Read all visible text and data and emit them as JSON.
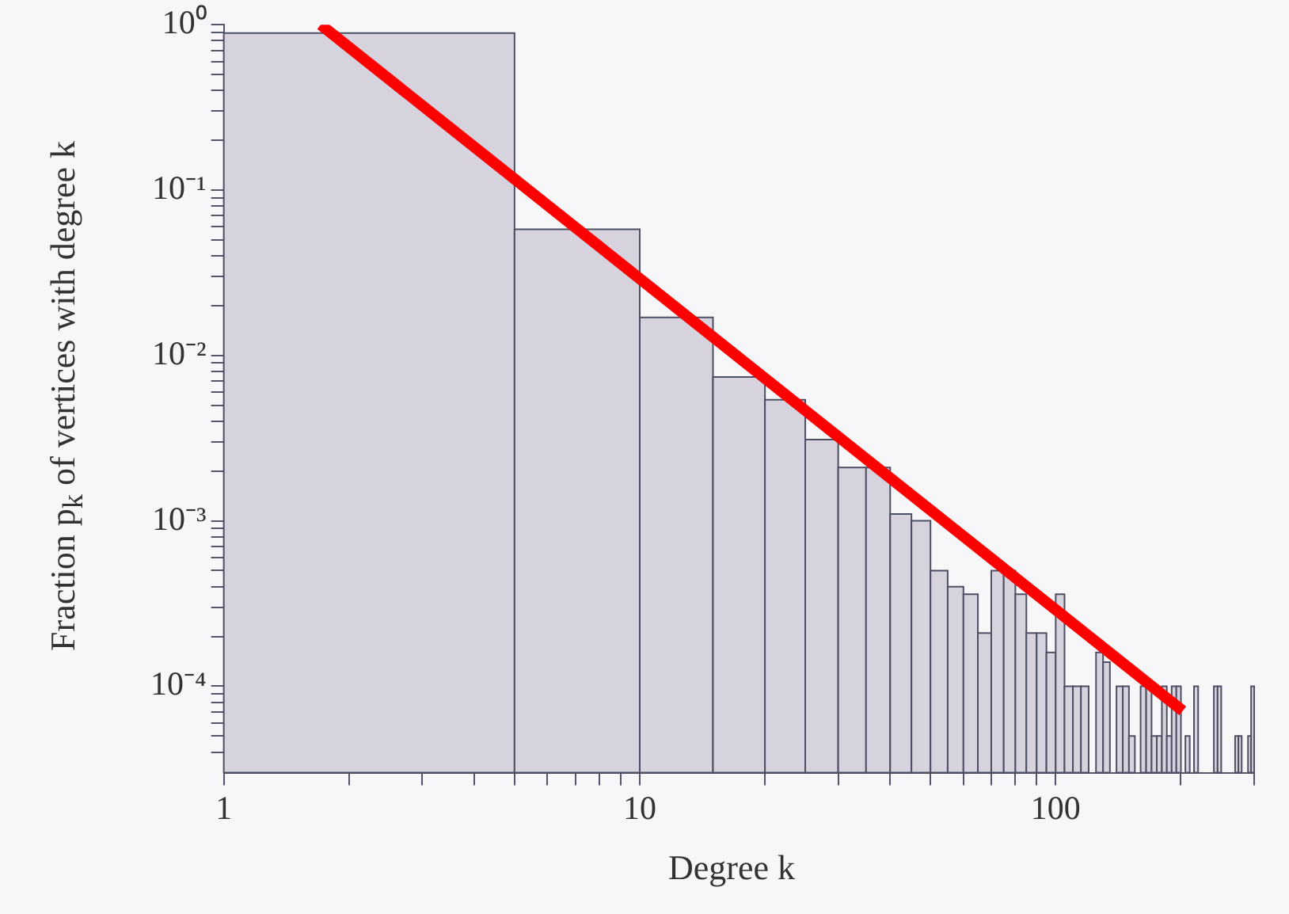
{
  "chart_data": {
    "type": "histogram",
    "xlabel": "Degree  k",
    "ylabel": "Fraction p$_{k}$ of vertices with degree k",
    "log": "xy",
    "xlim": [
      1,
      300
    ],
    "ylim": [
      3e-05,
      1
    ],
    "grid": false,
    "legend": false,
    "xticks": [
      1,
      {
        "value": 2,
        "label": null
      },
      {
        "value": 3,
        "label": null
      },
      {
        "value": 4,
        "label": null
      },
      {
        "value": 5,
        "label": null
      },
      {
        "value": 6,
        "label": null
      },
      {
        "value": 7,
        "label": null
      },
      {
        "value": 8,
        "label": null
      },
      {
        "value": 9,
        "label": null
      },
      10,
      {
        "value": 20,
        "label": null
      },
      {
        "value": 30,
        "label": null
      },
      {
        "value": 40,
        "label": null
      },
      {
        "value": 50,
        "label": null
      },
      {
        "value": 60,
        "label": null
      },
      {
        "value": 70,
        "label": null
      },
      {
        "value": 80,
        "label": null
      },
      {
        "value": 90,
        "label": null
      },
      100,
      {
        "value": 200,
        "label": null
      },
      {
        "value": 300,
        "label": null
      }
    ],
    "yticks": [
      {
        "value": 1,
        "label": "10⁰"
      },
      {
        "value": 0.9,
        "label": null
      },
      {
        "value": 0.8,
        "label": null
      },
      {
        "value": 0.7,
        "label": null
      },
      {
        "value": 0.6,
        "label": null
      },
      {
        "value": 0.5,
        "label": null
      },
      {
        "value": 0.4,
        "label": null
      },
      {
        "value": 0.3,
        "label": null
      },
      {
        "value": 0.2,
        "label": null
      },
      {
        "value": 0.1,
        "label": "10⁻¹"
      },
      {
        "value": 0.09,
        "label": null
      },
      {
        "value": 0.08,
        "label": null
      },
      {
        "value": 0.07,
        "label": null
      },
      {
        "value": 0.06,
        "label": null
      },
      {
        "value": 0.05,
        "label": null
      },
      {
        "value": 0.04,
        "label": null
      },
      {
        "value": 0.03,
        "label": null
      },
      {
        "value": 0.02,
        "label": null
      },
      {
        "value": 0.01,
        "label": "10⁻²"
      },
      {
        "value": 0.009,
        "label": null
      },
      {
        "value": 0.008,
        "label": null
      },
      {
        "value": 0.007,
        "label": null
      },
      {
        "value": 0.006,
        "label": null
      },
      {
        "value": 0.005,
        "label": null
      },
      {
        "value": 0.004,
        "label": null
      },
      {
        "value": 0.003,
        "label": null
      },
      {
        "value": 0.002,
        "label": null
      },
      {
        "value": 0.001,
        "label": "10⁻³"
      },
      {
        "value": 0.0009,
        "label": null
      },
      {
        "value": 0.0008,
        "label": null
      },
      {
        "value": 0.0007,
        "label": null
      },
      {
        "value": 0.0006,
        "label": null
      },
      {
        "value": 0.0005,
        "label": null
      },
      {
        "value": 0.0004,
        "label": null
      },
      {
        "value": 0.0003,
        "label": null
      },
      {
        "value": 0.0002,
        "label": null
      },
      {
        "value": 0.0001,
        "label": "10⁻⁴"
      },
      {
        "value": 9e-05,
        "label": null
      },
      {
        "value": 8e-05,
        "label": null
      },
      {
        "value": 7e-05,
        "label": null
      },
      {
        "value": 6e-05,
        "label": null
      },
      {
        "value": 5e-05,
        "label": null
      },
      {
        "value": 4e-05,
        "label": null
      }
    ],
    "series": [
      {
        "color": "#d6d3df",
        "bins": [
          1,
          5,
          10,
          15,
          20,
          25,
          30,
          35,
          40,
          45,
          50,
          55,
          60,
          65,
          70,
          75,
          80,
          85,
          90,
          95,
          100,
          105,
          110,
          115,
          120,
          125,
          130,
          135,
          140,
          145,
          150,
          155,
          160,
          165,
          170,
          175,
          180,
          185,
          190,
          195,
          200,
          205,
          210,
          215,
          220,
          240,
          245,
          250,
          270,
          275,
          280,
          290,
          295,
          300
        ],
        "values": [
          0.89,
          0.058,
          0.017,
          0.0074,
          0.0054,
          0.0031,
          0.0021,
          0.0021,
          0.0011,
          0.001,
          0.0005,
          0.0004,
          0.00036,
          0.00021,
          0.0005,
          0.0005,
          0.00036,
          0.00021,
          0.00021,
          0.00016,
          0.00036,
          0.0001,
          0.0001,
          0.0001,
          null,
          0.00016,
          0.00014,
          null,
          0.0001,
          0.0001,
          5e-05,
          null,
          0.0001,
          0.0001,
          5e-05,
          5e-05,
          0.0001,
          5e-05,
          0.0001,
          0.0001,
          null,
          5e-05,
          null,
          0.0001,
          null,
          0.0001,
          0.0001,
          null,
          5e-05,
          5e-05,
          null,
          5e-05,
          0.0001
        ]
      },
      {
        "type": "line",
        "color": "#ff0000",
        "x": [
          1.71,
          202
        ],
        "values": [
          1,
          7.1e-05
        ]
      }
    ]
  }
}
